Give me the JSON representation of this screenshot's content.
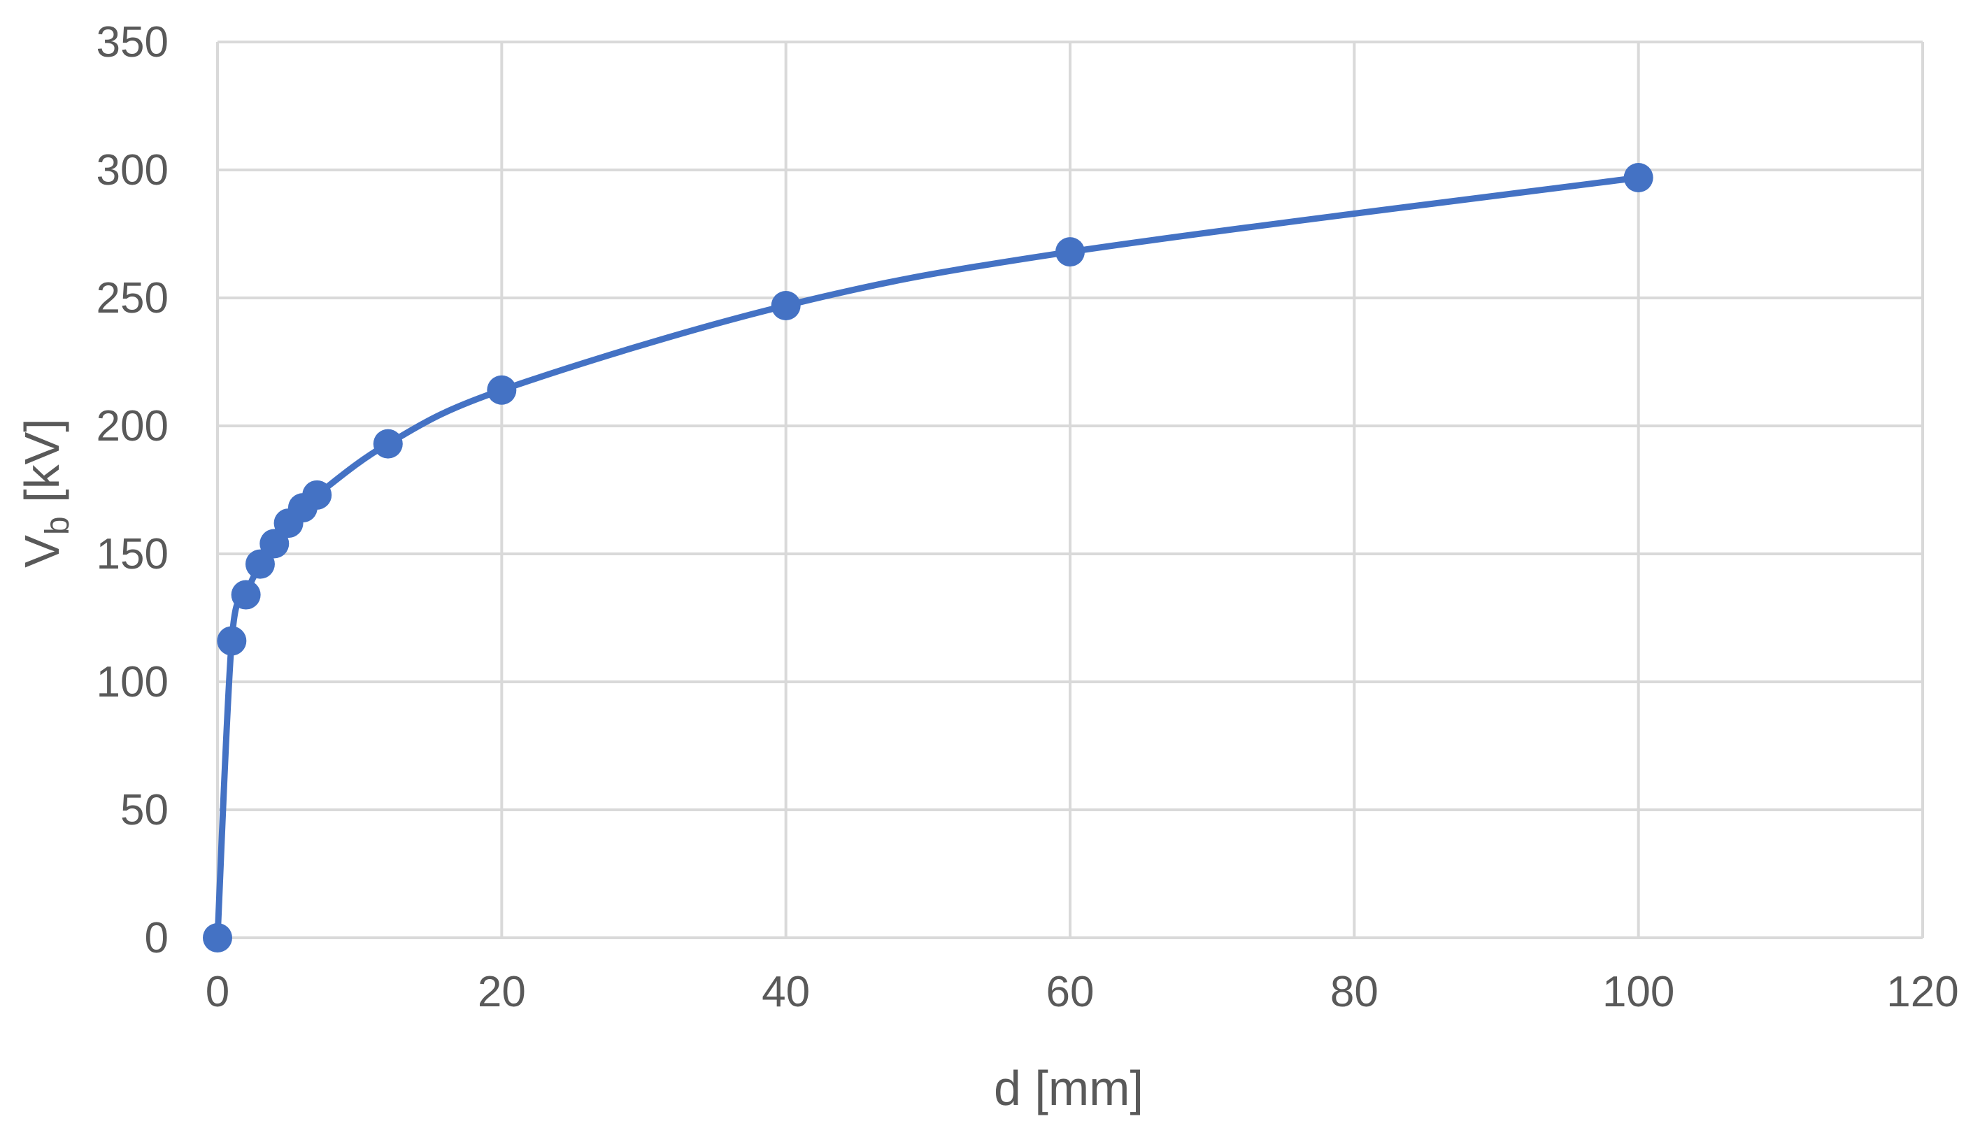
{
  "chart_data": {
    "type": "line",
    "title": "",
    "xlabel": "d [mm]",
    "ylabel": {
      "main": "V",
      "subscript": "b",
      "unit": " [kV]"
    },
    "xlim": [
      0,
      120
    ],
    "ylim": [
      0,
      350
    ],
    "x_ticks": [
      0,
      20,
      40,
      60,
      80,
      100,
      120
    ],
    "y_ticks": [
      0,
      50,
      100,
      150,
      200,
      250,
      300,
      350
    ],
    "grid": true,
    "smooth": true,
    "legend": "none",
    "series": [
      {
        "x": [
          0,
          1,
          2,
          3,
          4,
          5,
          6,
          7,
          12,
          20,
          40,
          60,
          100
        ],
        "y": [
          0,
          116,
          134,
          146,
          154,
          162,
          168,
          173,
          193,
          214,
          247,
          268,
          297
        ]
      }
    ],
    "colors": {
      "series": "#4472c4",
      "grid": "#d9d9d9",
      "text": "#595959"
    }
  }
}
